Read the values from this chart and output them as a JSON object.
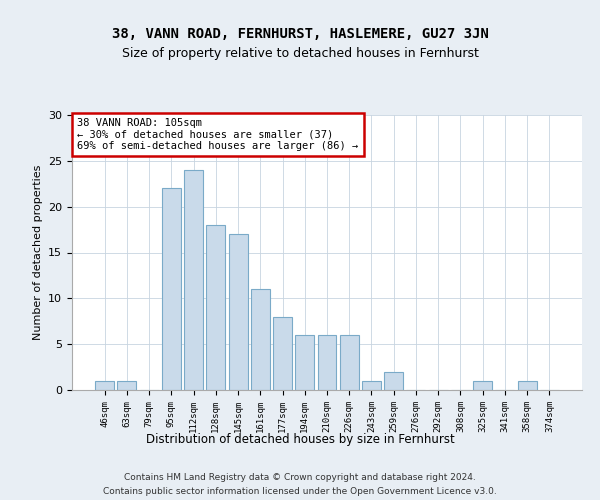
{
  "title": "38, VANN ROAD, FERNHURST, HASLEMERE, GU27 3JN",
  "subtitle": "Size of property relative to detached houses in Fernhurst",
  "xlabel": "Distribution of detached houses by size in Fernhurst",
  "ylabel": "Number of detached properties",
  "bar_labels": [
    "46sqm",
    "63sqm",
    "79sqm",
    "95sqm",
    "112sqm",
    "128sqm",
    "145sqm",
    "161sqm",
    "177sqm",
    "194sqm",
    "210sqm",
    "226sqm",
    "243sqm",
    "259sqm",
    "276sqm",
    "292sqm",
    "308sqm",
    "325sqm",
    "341sqm",
    "358sqm",
    "374sqm"
  ],
  "bar_values": [
    1,
    1,
    0,
    22,
    24,
    18,
    17,
    11,
    8,
    6,
    6,
    6,
    1,
    2,
    0,
    0,
    0,
    1,
    0,
    1,
    0
  ],
  "bar_color": "#c9daea",
  "bar_edge_color": "#7aaac8",
  "ylim": [
    0,
    30
  ],
  "yticks": [
    0,
    5,
    10,
    15,
    20,
    25,
    30
  ],
  "annotation_text": "38 VANN ROAD: 105sqm\n← 30% of detached houses are smaller (37)\n69% of semi-detached houses are larger (86) →",
  "annotation_box_color": "white",
  "annotation_box_edgecolor": "#cc0000",
  "footer_line1": "Contains HM Land Registry data © Crown copyright and database right 2024.",
  "footer_line2": "Contains public sector information licensed under the Open Government Licence v3.0.",
  "background_color": "#e8eef4",
  "plot_background": "white",
  "grid_color": "#c8d4e0"
}
